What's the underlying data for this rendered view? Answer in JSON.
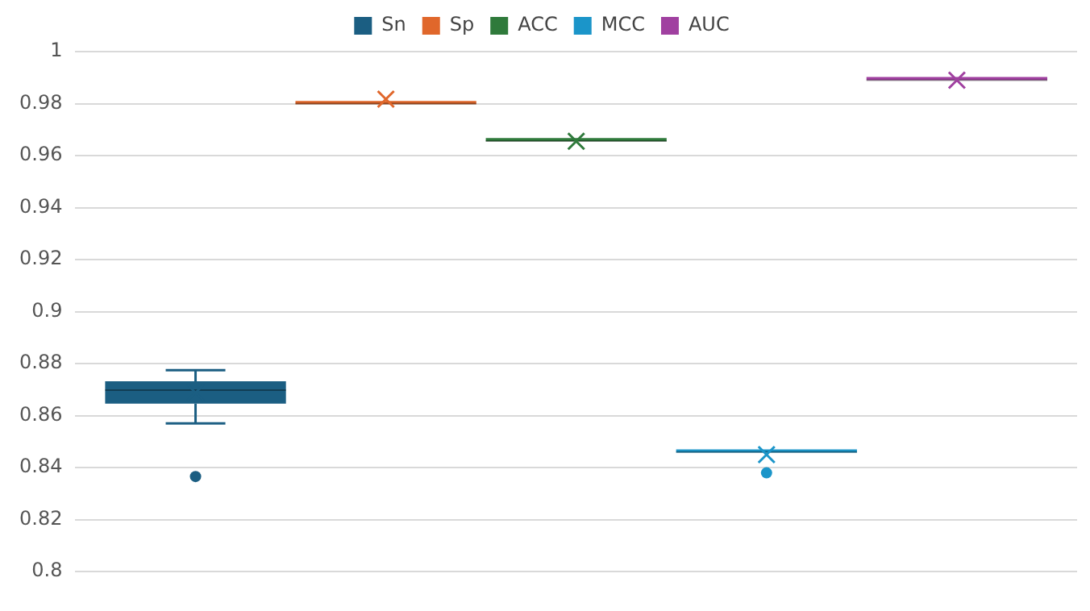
{
  "chart_data": {
    "type": "box",
    "categories": [
      null
    ],
    "series": [
      {
        "name": "Sn",
        "color": "#1b5e82",
        "boxes": [
          {
            "low": 0.857,
            "q1": 0.8646,
            "median": 0.8698,
            "q3": 0.8732,
            "high": 0.8775,
            "mean": 0.8688,
            "outliers": [
              0.8366
            ]
          }
        ]
      },
      {
        "name": "Sp",
        "color": "#e0672b",
        "boxes": [
          {
            "low": 0.9798,
            "q1": 0.9798,
            "median": 0.98,
            "q3": 0.9802,
            "high": 0.9802,
            "mean": 0.9817
          }
        ]
      },
      {
        "name": "ACC",
        "color": "#2f7a3b",
        "boxes": [
          {
            "low": 0.9655,
            "q1": 0.9655,
            "median": 0.9656,
            "q3": 0.9657,
            "high": 0.9657,
            "mean": 0.9655
          }
        ]
      },
      {
        "name": "MCC",
        "color": "#1b95c9",
        "boxes": [
          {
            "low": 0.8458,
            "q1": 0.8458,
            "median": 0.846,
            "q3": 0.8462,
            "high": 0.8462,
            "mean": 0.845,
            "outliers": [
              0.838
            ]
          }
        ]
      },
      {
        "name": "AUC",
        "color": "#a040a0",
        "boxes": [
          {
            "low": 0.989,
            "q1": 0.989,
            "median": 0.989,
            "q3": 0.989,
            "high": 0.989,
            "mean": 0.989
          }
        ]
      }
    ],
    "ylim": [
      0.8,
      1
    ],
    "yticks": [
      0.8,
      0.82,
      0.84,
      0.86,
      0.88,
      0.9,
      0.92,
      0.94,
      0.96,
      0.98,
      1
    ],
    "grid": "y",
    "legend": "top"
  }
}
